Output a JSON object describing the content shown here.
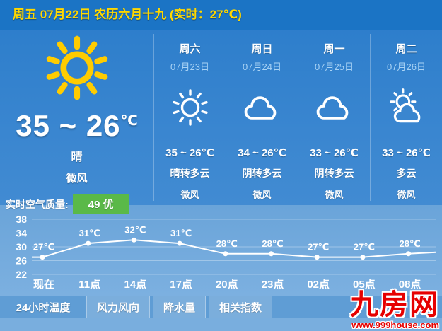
{
  "colors": {
    "header_bg": "#1b74c5",
    "header_text": "#ffd800",
    "main_bg_top": "#2a7cca",
    "main_bg_bottom": "#4f94d5",
    "chart_panel_bg": "#6fa8db",
    "tab_strip_bg": "#5f9dd5",
    "bottom_strip_bg": "#79aede",
    "air_badge_green": "#5ab948",
    "sun_yellow": "#ffcc00",
    "watermark_red": "#e60000"
  },
  "header": {
    "text": "周五 07月22日 农历六月十九 (实时：27℃)"
  },
  "current": {
    "icon": "sun",
    "high_low": "35 ~ 26",
    "unit": "℃",
    "condition": "晴",
    "wind": "微风",
    "air_quality_label": "实时空气质量:",
    "air_quality_value": "49 优"
  },
  "forecast": [
    {
      "day": "周六",
      "date": "07月23日",
      "icon": "sunny",
      "temp": "35 ~ 26℃",
      "condition": "晴转多云",
      "wind": "微风"
    },
    {
      "day": "周日",
      "date": "07月24日",
      "icon": "cloudy",
      "temp": "34 ~ 26℃",
      "condition": "阴转多云",
      "wind": "微风"
    },
    {
      "day": "周一",
      "date": "07月25日",
      "icon": "cloudy",
      "temp": "33 ~ 26℃",
      "condition": "阴转多云",
      "wind": "微风"
    },
    {
      "day": "周二",
      "date": "07月26日",
      "icon": "partly-cloudy",
      "temp": "33 ~ 26℃",
      "condition": "多云",
      "wind": "微风"
    }
  ],
  "chart_data": {
    "type": "line",
    "title": "24小时温度",
    "x": [
      "现在",
      "11点",
      "14点",
      "17点",
      "20点",
      "23点",
      "02点",
      "05点",
      "08点"
    ],
    "values": [
      27,
      31,
      32,
      31,
      28,
      28,
      27,
      27,
      28
    ],
    "unit": "℃",
    "yticks": [
      38,
      34,
      30,
      26,
      22
    ],
    "ylim": [
      22,
      38
    ],
    "grid": true,
    "line_color": "#ffffff",
    "legend_position": "none"
  },
  "tabs": [
    {
      "label": "24小时温度",
      "active": true
    },
    {
      "label": "风力风向",
      "active": false
    },
    {
      "label": "降水量",
      "active": false
    },
    {
      "label": "相关指数",
      "active": false
    }
  ],
  "watermark": {
    "title": "九房网",
    "url": "www.999house.com"
  }
}
